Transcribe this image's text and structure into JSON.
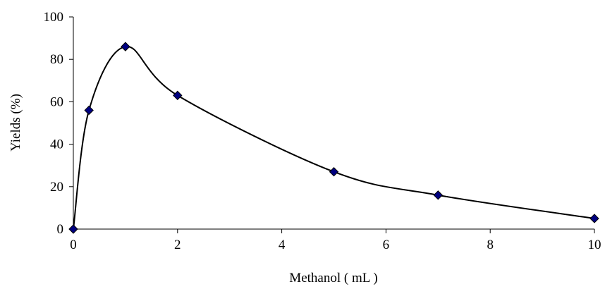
{
  "chart_data": {
    "type": "scatter",
    "xlabel": "Methanol ( mL )",
    "ylabel": "Yields (%)",
    "xlim": [
      0,
      10
    ],
    "ylim": [
      0,
      100
    ],
    "x_ticks": [
      "0",
      "2",
      "4",
      "6",
      "8",
      "10"
    ],
    "y_ticks": [
      "0",
      "20",
      "40",
      "60",
      "80",
      "100"
    ],
    "grid": false,
    "legend": "none",
    "smoothed_line": true,
    "series": [
      {
        "x": [
          0,
          0.3,
          1,
          2,
          5,
          7,
          10
        ],
        "y": [
          0,
          56,
          86,
          63,
          27,
          16,
          5
        ],
        "marker": "diamond",
        "marker_color": "#000080",
        "line_color": "#000000"
      }
    ]
  }
}
